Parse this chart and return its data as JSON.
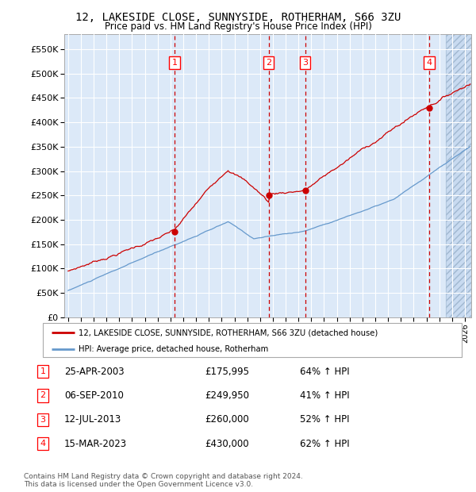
{
  "title": "12, LAKESIDE CLOSE, SUNNYSIDE, ROTHERHAM, S66 3ZU",
  "subtitle": "Price paid vs. HM Land Registry's House Price Index (HPI)",
  "ylabel_ticks": [
    "£0",
    "£50K",
    "£100K",
    "£150K",
    "£200K",
    "£250K",
    "£300K",
    "£350K",
    "£400K",
    "£450K",
    "£500K",
    "£550K"
  ],
  "ytick_vals": [
    0,
    50000,
    100000,
    150000,
    200000,
    250000,
    300000,
    350000,
    400000,
    450000,
    500000,
    550000
  ],
  "ylim": [
    0,
    580000
  ],
  "xlim_start": 1994.7,
  "xlim_end": 2026.5,
  "sales": [
    {
      "label": "1",
      "date": "25-APR-2003",
      "year": 2003.31,
      "price": 175995,
      "pct": "64%",
      "dir": "↑"
    },
    {
      "label": "2",
      "date": "06-SEP-2010",
      "year": 2010.68,
      "price": 249950,
      "pct": "41%",
      "dir": "↑"
    },
    {
      "label": "3",
      "date": "12-JUL-2013",
      "year": 2013.53,
      "price": 260000,
      "pct": "52%",
      "dir": "↑"
    },
    {
      "label": "4",
      "date": "15-MAR-2023",
      "year": 2023.21,
      "price": 430000,
      "pct": "62%",
      "dir": "↑"
    }
  ],
  "legend_label_red": "12, LAKESIDE CLOSE, SUNNYSIDE, ROTHERHAM, S66 3ZU (detached house)",
  "legend_label_blue": "HPI: Average price, detached house, Rotherham",
  "footnote": "Contains HM Land Registry data © Crown copyright and database right 2024.\nThis data is licensed under the Open Government Licence v3.0.",
  "bg_color": "#dce9f8",
  "hatch_color": "#b8cce4",
  "grid_color": "#ffffff",
  "red_color": "#cc0000",
  "blue_color": "#6699cc",
  "sale_vline_color": "#cc0000",
  "hatch_start": 2024.5,
  "future_bg": "#c8daf0"
}
